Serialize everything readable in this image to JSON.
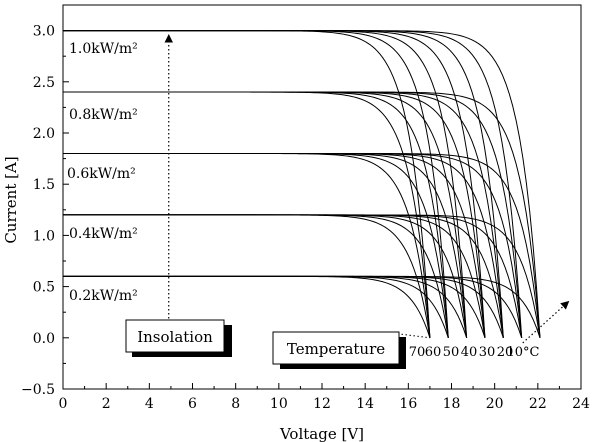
{
  "chart_data": {
    "type": "line",
    "title": "",
    "xlabel": "Voltage [V]",
    "ylabel": "Current [A]",
    "xlim": [
      0,
      24
    ],
    "ylim": [
      -0.5,
      3.25
    ],
    "xticks": [
      "0",
      "2",
      "4",
      "6",
      "8",
      "10",
      "12",
      "14",
      "16",
      "18",
      "20",
      "22",
      "24"
    ],
    "yticks": [
      "−0.5",
      "0.0",
      "0.5",
      "1.0",
      "1.5",
      "2.0",
      "2.5",
      "3.0"
    ],
    "grid": false,
    "irradiance_levels": [
      {
        "label": "1.0kW/m²",
        "isc": 3.0
      },
      {
        "label": "0.8kW/m²",
        "isc": 2.4
      },
      {
        "label": "0.6kW/m²",
        "isc": 1.8
      },
      {
        "label": "0.4kW/m²",
        "isc": 1.2
      },
      {
        "label": "0.2kW/m²",
        "isc": 0.6
      }
    ],
    "temperatures": [
      {
        "label": "70",
        "t": 70,
        "voc": 17.0
      },
      {
        "label": "60",
        "t": 60,
        "voc": 17.85
      },
      {
        "label": "50",
        "t": 50,
        "voc": 18.7
      },
      {
        "label": "40",
        "t": 40,
        "voc": 19.55
      },
      {
        "label": "30",
        "t": 30,
        "voc": 20.4
      },
      {
        "label": "20",
        "t": 20,
        "voc": 21.25
      },
      {
        "label": "10°C",
        "t": 10,
        "voc": 22.1
      }
    ],
    "curve_shape": "I = Isc × (1 − exp((V − Voc)/Vt)) / (1 − exp(−Voc/Vt)), Vt = 0.9 V, for V in [0, Voc]",
    "annotations": [
      {
        "text": "Insolation",
        "arrow": "upward (dotted) at V = 4.9, from I = 0.15 to I = 2.95"
      },
      {
        "text": "Temperature",
        "arrow": "rightward (dotted) from V = 21.3, I = −0.05 to V = 23.4, I = 0.35"
      }
    ],
    "series_color": "#000000"
  }
}
